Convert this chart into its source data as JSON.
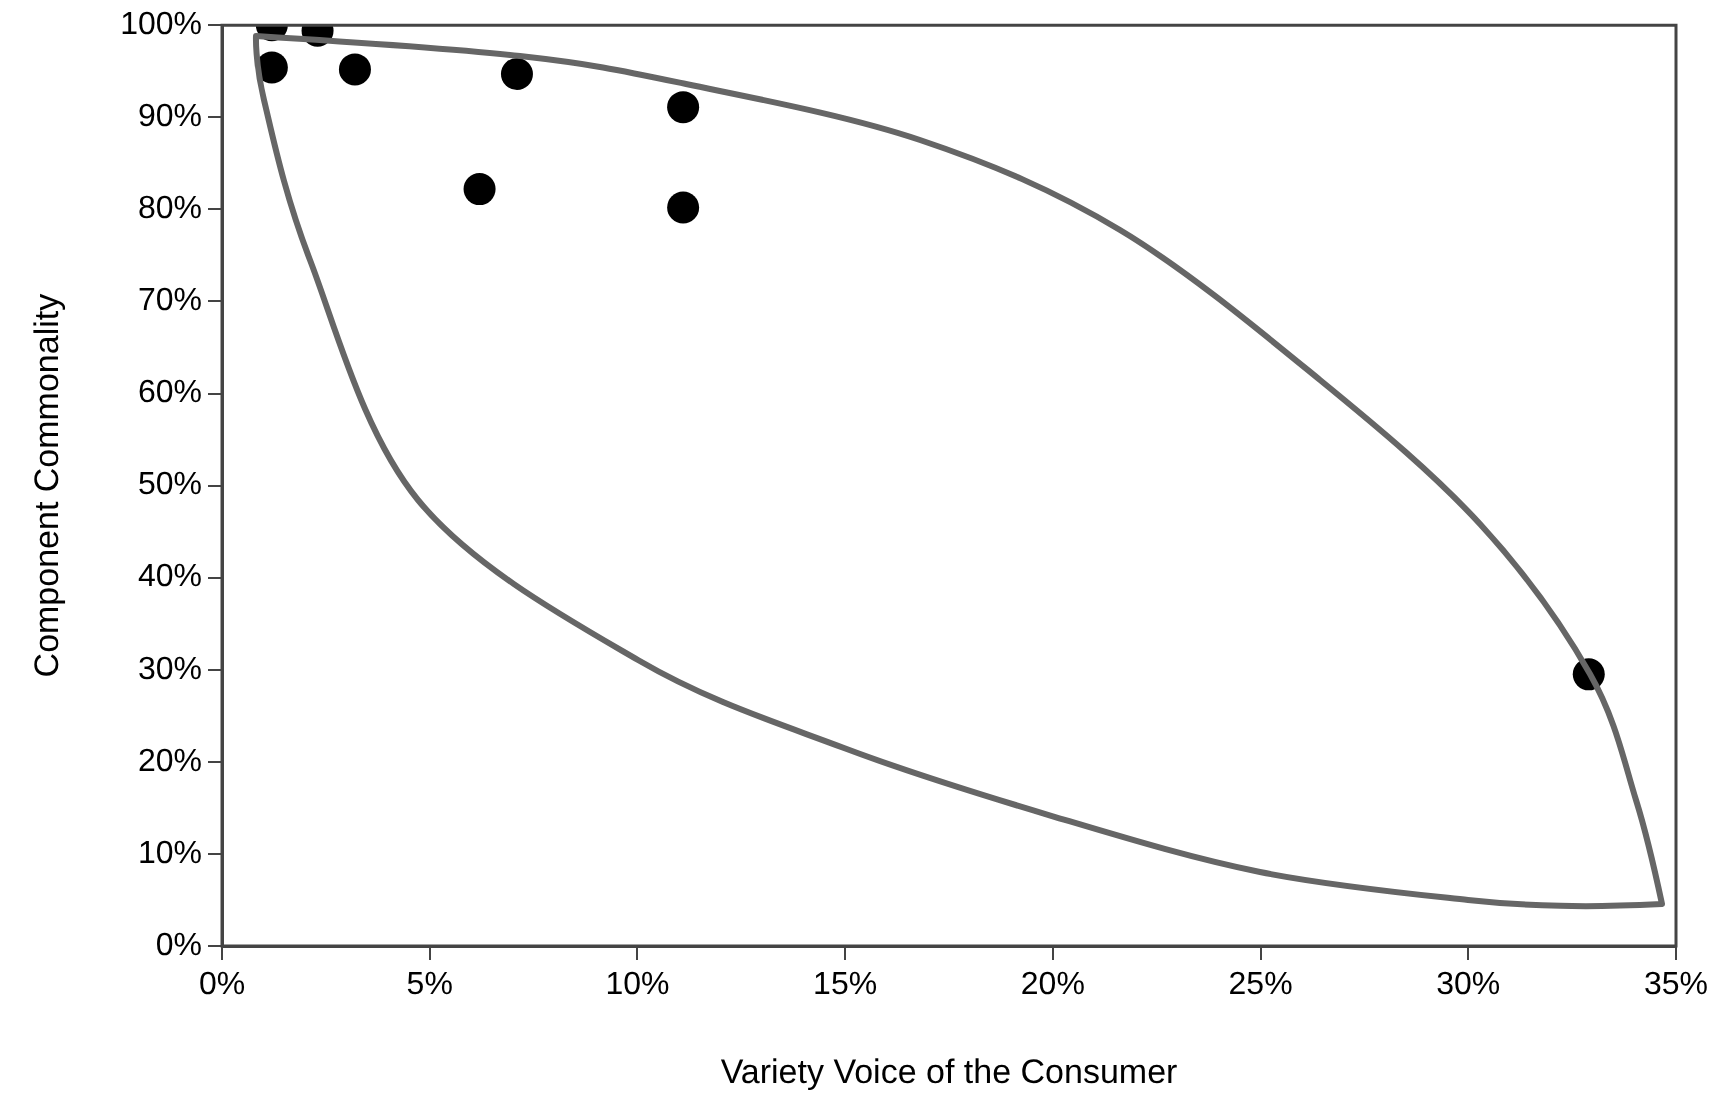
{
  "chart_data": {
    "type": "scatter",
    "xlabel": "Variety Voice of the Consumer",
    "ylabel": "Component Commonality",
    "xlim": [
      0,
      35
    ],
    "ylim": [
      0,
      100
    ],
    "xticks": [
      {
        "value": 0,
        "label": "0%"
      },
      {
        "value": 5,
        "label": "5%"
      },
      {
        "value": 10,
        "label": "10%"
      },
      {
        "value": 15,
        "label": "15%"
      },
      {
        "value": 20,
        "label": "20%"
      },
      {
        "value": 25,
        "label": "25%"
      },
      {
        "value": 30,
        "label": "30%"
      },
      {
        "value": 35,
        "label": "35%"
      }
    ],
    "yticks": [
      {
        "value": 0,
        "label": "0%"
      },
      {
        "value": 10,
        "label": "10%"
      },
      {
        "value": 20,
        "label": "20%"
      },
      {
        "value": 30,
        "label": "30%"
      },
      {
        "value": 40,
        "label": "40%"
      },
      {
        "value": 50,
        "label": "50%"
      },
      {
        "value": 60,
        "label": "60%"
      },
      {
        "value": 70,
        "label": "70%"
      },
      {
        "value": 80,
        "label": "80%"
      },
      {
        "value": 90,
        "label": "90%"
      },
      {
        "value": 100,
        "label": "100%"
      }
    ],
    "grid": false,
    "legend": false,
    "marker": "circle",
    "series": [
      {
        "color": "#000000",
        "x": [
          1.2,
          2.3,
          1.2,
          3.2,
          7.1,
          11.1,
          6.2,
          11.1,
          32.9
        ],
        "values": [
          100,
          99.4,
          95.4,
          95.2,
          94.7,
          91.1,
          82.2,
          80.2,
          29.5
        ]
      }
    ]
  }
}
